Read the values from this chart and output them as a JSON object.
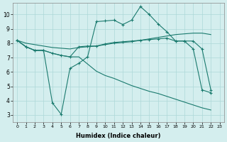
{
  "xlabel": "Humidex (Indice chaleur)",
  "bg_color": "#d4eeee",
  "grid_color": "#add8d8",
  "line_color": "#1a7a6e",
  "xlim": [
    -0.5,
    23.5
  ],
  "ylim": [
    2.5,
    10.8
  ],
  "xticks": [
    0,
    1,
    2,
    3,
    4,
    5,
    6,
    7,
    8,
    9,
    10,
    11,
    12,
    13,
    14,
    15,
    16,
    17,
    18,
    19,
    20,
    21,
    22,
    23
  ],
  "yticks": [
    3,
    4,
    5,
    6,
    7,
    8,
    9,
    10
  ],
  "line1_x": [
    0,
    1,
    2,
    3,
    4,
    5,
    6,
    7,
    8,
    9,
    10,
    11,
    12,
    13,
    14,
    15,
    16,
    17,
    18,
    19,
    20,
    21,
    22
  ],
  "line1_y": [
    8.2,
    7.75,
    7.5,
    7.5,
    3.85,
    3.05,
    6.25,
    6.6,
    7.05,
    9.5,
    9.55,
    9.6,
    9.3,
    9.6,
    10.55,
    10.0,
    9.35,
    8.8,
    8.15,
    8.15,
    7.6,
    4.75,
    4.55
  ],
  "line2_x": [
    0,
    1,
    2,
    3,
    4,
    5,
    6,
    7,
    8,
    9,
    10,
    11,
    12,
    13,
    14,
    15,
    16,
    17,
    18,
    19,
    20,
    21,
    22
  ],
  "line2_y": [
    8.2,
    7.75,
    7.5,
    7.5,
    7.3,
    7.15,
    7.05,
    7.75,
    7.8,
    7.8,
    7.95,
    8.05,
    8.1,
    8.15,
    8.2,
    8.25,
    8.3,
    8.35,
    8.15,
    8.15,
    8.15,
    7.6,
    4.75
  ],
  "line3_x": [
    0,
    1,
    2,
    3,
    4,
    5,
    6,
    7,
    8,
    9,
    10,
    11,
    12,
    13,
    14,
    15,
    16,
    17,
    18,
    19,
    20,
    21,
    22
  ],
  "line3_y": [
    8.2,
    8.0,
    7.9,
    7.8,
    7.7,
    7.65,
    7.6,
    7.7,
    7.75,
    7.8,
    7.9,
    8.0,
    8.05,
    8.1,
    8.2,
    8.3,
    8.4,
    8.5,
    8.6,
    8.65,
    8.7,
    8.7,
    8.6
  ],
  "line4_x": [
    0,
    1,
    2,
    3,
    4,
    5,
    6,
    7,
    8,
    9,
    10,
    11,
    12,
    13,
    14,
    15,
    16,
    17,
    18,
    19,
    20,
    21,
    22
  ],
  "line4_y": [
    8.2,
    7.75,
    7.5,
    7.5,
    7.3,
    7.15,
    7.05,
    7.05,
    6.55,
    6.05,
    5.75,
    5.55,
    5.3,
    5.05,
    4.85,
    4.65,
    4.5,
    4.3,
    4.1,
    3.9,
    3.7,
    3.5,
    3.35
  ]
}
